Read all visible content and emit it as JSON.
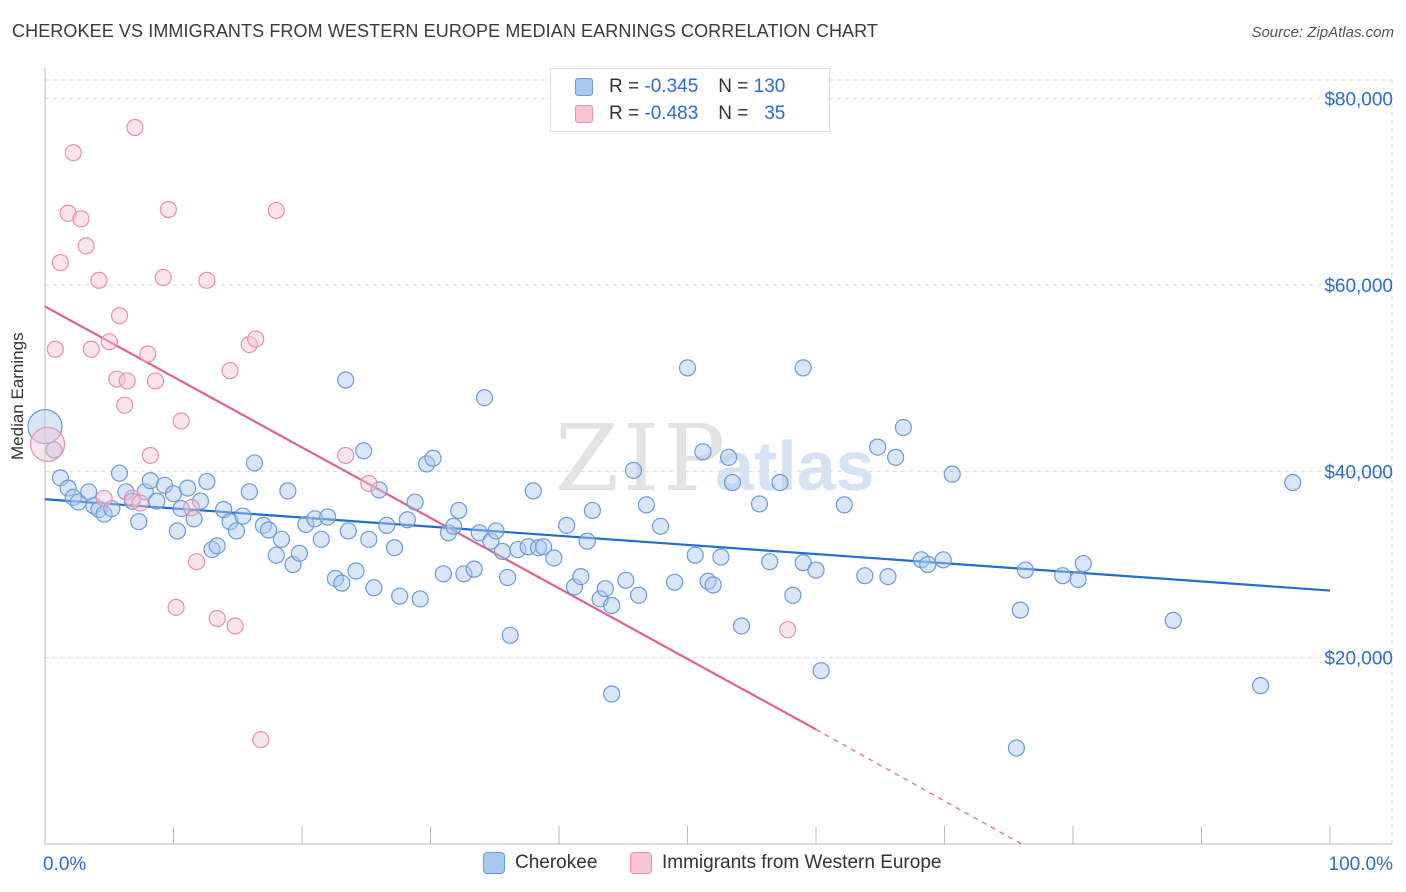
{
  "title": "CHEROKEE VS IMMIGRANTS FROM WESTERN EUROPE MEDIAN EARNINGS CORRELATION CHART",
  "source": "Source: ZipAtlas.com",
  "watermark": {
    "zip": "ZIP",
    "atlas": "atlas"
  },
  "legend": {
    "rows": [
      {
        "r_label": "R =",
        "r_value": "-0.345",
        "n_label": "N =",
        "n_value": "130",
        "color": "#a9c8f0",
        "border": "#6a9bd8"
      },
      {
        "r_label": "R =",
        "r_value": "-0.483",
        "n_label": "N =",
        "n_value": "35",
        "color": "#f7c4d3",
        "border": "#e88fac"
      }
    ]
  },
  "bottom_legend": [
    {
      "label": "Cherokee",
      "color": "#a9c8f0",
      "border": "#6a9bd8"
    },
    {
      "label": "Immigrants from Western Europe",
      "color": "#f7c4d3",
      "border": "#e88fac"
    }
  ],
  "chart_data": {
    "type": "scatter",
    "title": "CHEROKEE VS IMMIGRANTS FROM WESTERN EUROPE MEDIAN EARNINGS CORRELATION CHART",
    "xlabel": "",
    "ylabel": "Median Earnings",
    "xlim": [
      0,
      100
    ],
    "ylim": [
      0,
      82000
    ],
    "x_tick_labels": [
      "0.0%",
      "100.0%"
    ],
    "y_ticks": [
      20000,
      40000,
      60000,
      80000
    ],
    "y_tick_labels": [
      "$20,000",
      "$40,000",
      "$60,000",
      "$80,000"
    ],
    "grid": true,
    "series": [
      {
        "name": "Cherokee",
        "color": "#6a9bd8",
        "fill": "rgba(169,200,240,0.45)",
        "trend": {
          "x0": 0,
          "y0": 37000,
          "x1": 100,
          "y1": 27200,
          "color": "#1f6fcc"
        },
        "points": [
          [
            0.0,
            44800,
            "big"
          ],
          [
            0.7,
            42300
          ],
          [
            1.2,
            39300
          ],
          [
            1.8,
            38200
          ],
          [
            2.2,
            37200
          ],
          [
            2.6,
            36700
          ],
          [
            3.4,
            37800
          ],
          [
            3.8,
            36300
          ],
          [
            4.2,
            35900
          ],
          [
            4.6,
            35400
          ],
          [
            5.2,
            36000
          ],
          [
            5.8,
            39800
          ],
          [
            6.3,
            37800
          ],
          [
            6.8,
            36800
          ],
          [
            7.3,
            34600
          ],
          [
            7.8,
            37800
          ],
          [
            8.2,
            39000
          ],
          [
            8.7,
            36800
          ],
          [
            9.3,
            38500
          ],
          [
            10.0,
            37600
          ],
          [
            10.3,
            33600
          ],
          [
            10.6,
            36000
          ],
          [
            11.1,
            38200
          ],
          [
            11.6,
            34900
          ],
          [
            12.1,
            36800
          ],
          [
            12.6,
            38900
          ],
          [
            13.0,
            31600
          ],
          [
            13.4,
            32000
          ],
          [
            13.9,
            35900
          ],
          [
            14.4,
            34600
          ],
          [
            14.9,
            33600
          ],
          [
            15.4,
            35200
          ],
          [
            15.9,
            37800
          ],
          [
            16.3,
            40900
          ],
          [
            17.0,
            34200
          ],
          [
            17.4,
            33700
          ],
          [
            18.0,
            31000
          ],
          [
            18.4,
            32700
          ],
          [
            18.9,
            37900
          ],
          [
            19.3,
            30000
          ],
          [
            19.8,
            31200
          ],
          [
            20.3,
            34300
          ],
          [
            21.0,
            34900
          ],
          [
            21.5,
            32700
          ],
          [
            22.0,
            35100
          ],
          [
            22.6,
            28500
          ],
          [
            23.1,
            28000
          ],
          [
            23.6,
            33600
          ],
          [
            23.4,
            49800
          ],
          [
            24.2,
            29300
          ],
          [
            24.8,
            42200
          ],
          [
            25.2,
            32700
          ],
          [
            25.6,
            27500
          ],
          [
            26.0,
            38000
          ],
          [
            26.6,
            34200
          ],
          [
            27.2,
            31800
          ],
          [
            27.6,
            26600
          ],
          [
            28.2,
            34800
          ],
          [
            28.8,
            36700
          ],
          [
            29.2,
            26300
          ],
          [
            29.7,
            40800
          ],
          [
            30.2,
            41400
          ],
          [
            31.0,
            29000
          ],
          [
            31.4,
            33400
          ],
          [
            31.8,
            34100
          ],
          [
            32.2,
            35800
          ],
          [
            32.6,
            29000
          ],
          [
            33.4,
            29500
          ],
          [
            33.8,
            33400
          ],
          [
            34.2,
            47900
          ],
          [
            34.7,
            32500
          ],
          [
            35.1,
            33600
          ],
          [
            35.6,
            31400
          ],
          [
            36.0,
            28600
          ],
          [
            36.2,
            22400
          ],
          [
            36.8,
            31600
          ],
          [
            37.6,
            31900
          ],
          [
            38.0,
            37900
          ],
          [
            38.4,
            31800
          ],
          [
            38.8,
            31900
          ],
          [
            39.6,
            30700
          ],
          [
            40.6,
            34200
          ],
          [
            41.2,
            27600
          ],
          [
            41.7,
            28700
          ],
          [
            42.2,
            32500
          ],
          [
            42.6,
            35800
          ],
          [
            43.2,
            26300
          ],
          [
            43.6,
            27400
          ],
          [
            44.1,
            25600
          ],
          [
            44.1,
            16100
          ],
          [
            45.2,
            28300
          ],
          [
            45.8,
            40100
          ],
          [
            46.2,
            26700
          ],
          [
            46.8,
            36400
          ],
          [
            47.9,
            34100
          ],
          [
            50.0,
            51100
          ],
          [
            49.0,
            28100
          ],
          [
            50.6,
            31000
          ],
          [
            51.2,
            42100
          ],
          [
            51.6,
            28200
          ],
          [
            52.0,
            27800
          ],
          [
            52.6,
            30800
          ],
          [
            53.2,
            41500
          ],
          [
            53.5,
            38800
          ],
          [
            54.2,
            23400
          ],
          [
            55.6,
            36500
          ],
          [
            56.4,
            30300
          ],
          [
            57.2,
            38800
          ],
          [
            58.2,
            26700
          ],
          [
            59.0,
            51100
          ],
          [
            59.0,
            30200
          ],
          [
            60.0,
            29400
          ],
          [
            60.4,
            18600
          ],
          [
            62.2,
            36400
          ],
          [
            63.8,
            28800
          ],
          [
            64.8,
            42600
          ],
          [
            65.6,
            28700
          ],
          [
            66.2,
            41500
          ],
          [
            66.8,
            44700
          ],
          [
            68.2,
            30500
          ],
          [
            68.7,
            30000
          ],
          [
            69.9,
            30500
          ],
          [
            70.6,
            39700
          ],
          [
            75.6,
            10300
          ],
          [
            75.9,
            25100
          ],
          [
            76.3,
            29400
          ],
          [
            79.2,
            28800
          ],
          [
            80.4,
            28400
          ],
          [
            80.8,
            30100
          ],
          [
            87.8,
            24000
          ],
          [
            94.6,
            17000
          ],
          [
            97.1,
            38800
          ]
        ]
      },
      {
        "name": "Immigrants from Western Europe",
        "color": "#e88fac",
        "fill": "rgba(247,196,211,0.45)",
        "trend": {
          "x0": 0,
          "y0": 57700,
          "x1": 60,
          "y1": 12300,
          "color": "#e0628f",
          "dash_to": {
            "x": 76,
            "y": 0
          }
        },
        "points": [
          [
            0.2,
            42900,
            "big"
          ],
          [
            0.8,
            53100
          ],
          [
            1.2,
            62400
          ],
          [
            1.8,
            67700
          ],
          [
            2.2,
            74200
          ],
          [
            2.8,
            67100
          ],
          [
            3.2,
            64200
          ],
          [
            3.6,
            53100
          ],
          [
            4.2,
            60500
          ],
          [
            4.6,
            37100
          ],
          [
            5.0,
            53900
          ],
          [
            5.6,
            49900
          ],
          [
            5.8,
            56700
          ],
          [
            6.2,
            47100
          ],
          [
            6.4,
            49700
          ],
          [
            6.8,
            37100
          ],
          [
            7.0,
            76900
          ],
          [
            7.4,
            36600
          ],
          [
            8.0,
            52600
          ],
          [
            8.2,
            41700
          ],
          [
            8.6,
            49700
          ],
          [
            9.2,
            60800
          ],
          [
            9.6,
            68100
          ],
          [
            10.2,
            25400
          ],
          [
            10.6,
            45400
          ],
          [
            11.4,
            36100
          ],
          [
            11.8,
            30300
          ],
          [
            12.6,
            60500
          ],
          [
            13.4,
            24200
          ],
          [
            14.4,
            50800
          ],
          [
            14.8,
            23400
          ],
          [
            15.9,
            53600
          ],
          [
            16.4,
            54200
          ],
          [
            16.8,
            11200
          ],
          [
            18.0,
            68000
          ],
          [
            23.4,
            41700
          ],
          [
            25.2,
            38700
          ],
          [
            57.8,
            23000
          ]
        ]
      }
    ]
  }
}
